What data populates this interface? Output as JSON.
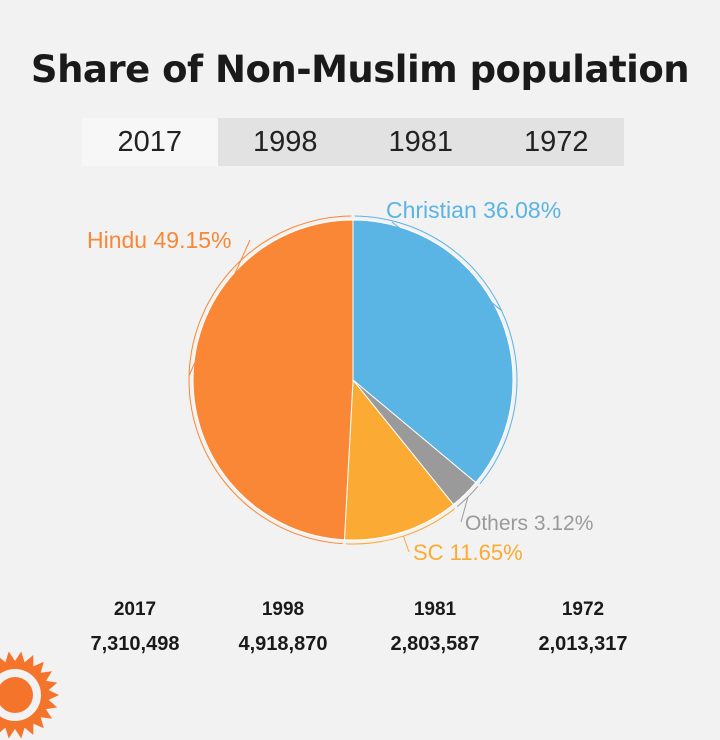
{
  "title": "Share of Non-Muslim population",
  "tabs": [
    {
      "label": "2017",
      "active": true
    },
    {
      "label": "1998",
      "active": false
    },
    {
      "label": "1981",
      "active": false
    },
    {
      "label": "1972",
      "active": false
    }
  ],
  "colors": {
    "christian": "#5ab4e4",
    "others": "#9a9a9a",
    "sc": "#fbab33",
    "hindu": "#fa8735",
    "logo": "#f5742b"
  },
  "chart_data": {
    "type": "pie",
    "slices": [
      {
        "name": "Christian",
        "value": 36.08,
        "label": "Christian 36.08%",
        "color": "#5ab4e4"
      },
      {
        "name": "Others",
        "value": 3.12,
        "label": "Others 3.12%",
        "color": "#9a9a9a"
      },
      {
        "name": "SC",
        "value": 11.65,
        "label": "SC 11.65%",
        "color": "#fbab33"
      },
      {
        "name": "Hindu",
        "value": 49.15,
        "label": "Hindu 49.15%",
        "color": "#fa8735"
      }
    ]
  },
  "totals": [
    {
      "year": "2017",
      "value": "7,310,498"
    },
    {
      "year": "1998",
      "value": "4,918,870"
    },
    {
      "year": "1981",
      "value": "2,803,587"
    },
    {
      "year": "1972",
      "value": "2,013,317"
    }
  ],
  "logo_icon": "sunburst-logo-icon"
}
